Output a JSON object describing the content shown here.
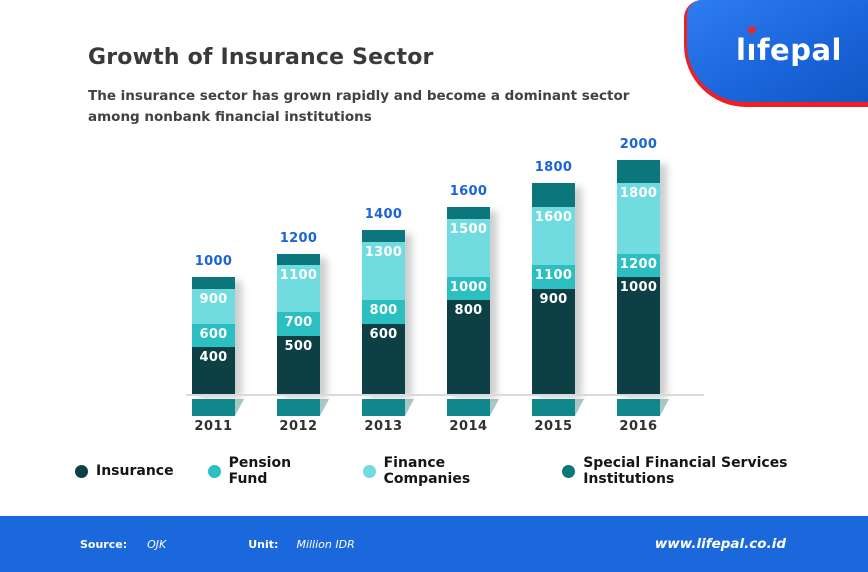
{
  "header": {
    "title": "Growth of Insurance Sector",
    "subtitle": "The insurance sector has grown rapidly and become a dominant sector among nonbank financial institutions"
  },
  "logo": {
    "text": "lifepal",
    "badge_color": "#1b66dc",
    "accent_color": "#ee2027"
  },
  "legend": [
    {
      "label": "Insurance",
      "color": "#0d4044"
    },
    {
      "label": "Pension Fund",
      "color": "#2bbfc2"
    },
    {
      "label": "Finance Companies",
      "color": "#70dcdf"
    },
    {
      "label": "Special Financial Services Institutions",
      "color": "#0b767b"
    }
  ],
  "chart_data": {
    "type": "bar",
    "variant": "stacked",
    "title": "Growth of Insurance Sector",
    "unit": "Million IDR",
    "categories": [
      "2011",
      "2012",
      "2013",
      "2014",
      "2015",
      "2016"
    ],
    "totals": [
      1000,
      1200,
      1400,
      1600,
      1800,
      2000
    ],
    "series": [
      {
        "name": "Insurance",
        "color": "#0d4044",
        "labeled": true,
        "cumulative": [
          400,
          500,
          600,
          800,
          900,
          1000
        ]
      },
      {
        "name": "Pension Fund",
        "color": "#2bbfc2",
        "labeled": true,
        "cumulative": [
          600,
          700,
          800,
          1000,
          1100,
          1200
        ]
      },
      {
        "name": "Finance Companies",
        "color": "#70dcdf",
        "labeled": true,
        "cumulative": [
          900,
          1100,
          1300,
          1500,
          1600,
          1800
        ]
      },
      {
        "name": "Special Financial Services Institutions",
        "color": "#0b767b",
        "labeled": false,
        "cumulative": [
          1000,
          1200,
          1400,
          1600,
          1800,
          2000
        ]
      }
    ],
    "ylim": [
      0,
      2000
    ],
    "grid": false,
    "legend_position": "bottom",
    "total_label_color": "#1b63d9",
    "segment_label_color": "#ffffff"
  },
  "footer": {
    "source_label": "Source:",
    "source_value": "OJK",
    "unit_label": "Unit:",
    "unit_value": "Million IDR",
    "website": "www.lifepal.co.id"
  }
}
